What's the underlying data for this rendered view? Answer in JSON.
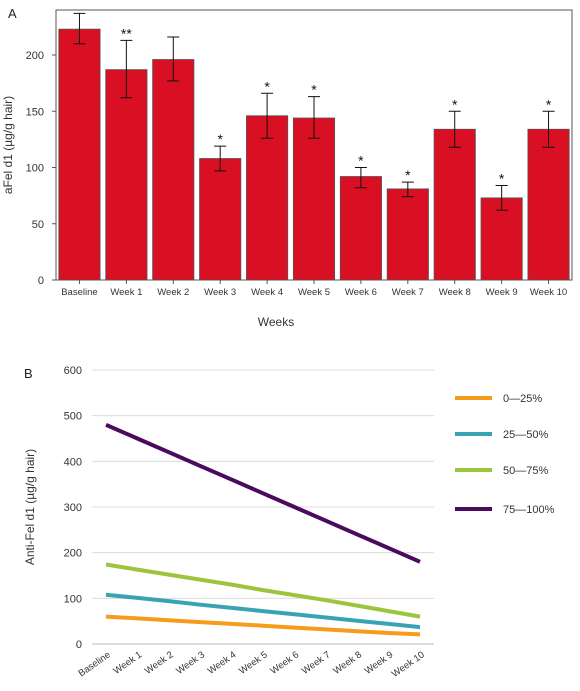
{
  "chart_data": [
    {
      "panel_label": "A",
      "type": "bar",
      "title": "",
      "xlabel": "Weeks",
      "ylabel": "aFel d1 (µg/g hair)",
      "ylim": [
        0,
        240
      ],
      "yticks": [
        0,
        50,
        100,
        150,
        200
      ],
      "grid": false,
      "categories": [
        "Baseline",
        "Week 1",
        "Week 2",
        "Week 3",
        "Week 4",
        "Week 5",
        "Week 6",
        "Week 7",
        "Week 8",
        "Week 9",
        "Week 10"
      ],
      "values": [
        223,
        187,
        196,
        108,
        146,
        144,
        92,
        81,
        134,
        73,
        134
      ],
      "error_low": [
        210,
        162,
        177,
        97,
        126,
        126,
        82,
        74,
        118,
        62,
        118
      ],
      "error_high": [
        237,
        213,
        216,
        119,
        166,
        163,
        100,
        87,
        150,
        84,
        150
      ],
      "significance": [
        "",
        "**",
        "",
        "*",
        "*",
        "*",
        "*",
        "*",
        "*",
        "*",
        "*"
      ],
      "bar_color": "#d90f23"
    },
    {
      "panel_label": "B",
      "type": "line",
      "title": "",
      "xlabel": "",
      "ylabel": "Anti-Fel d1 (µg/g hair)",
      "ylim": [
        0,
        600
      ],
      "yticks": [
        0,
        100,
        200,
        300,
        400,
        500,
        600
      ],
      "grid": true,
      "legend_position": "right",
      "x": [
        "Baseline",
        "Week 1",
        "Week 2",
        "Week 3",
        "Week 4",
        "Week 5",
        "Week 6",
        "Week 7",
        "Week 8",
        "Week 9",
        "Week 10"
      ],
      "series": [
        {
          "name": "0—25%",
          "color": "#f59c1a",
          "values": [
            60,
            56,
            52,
            48,
            44,
            40,
            36,
            32,
            28,
            24,
            21
          ]
        },
        {
          "name": "25—50%",
          "color": "#3aa3b3",
          "values": [
            108,
            101,
            94,
            86,
            79,
            72,
            65,
            58,
            51,
            44,
            37
          ]
        },
        {
          "name": "50—75%",
          "color": "#9bc53d",
          "values": [
            174,
            163,
            152,
            141,
            130,
            118,
            107,
            96,
            84,
            72,
            60
          ]
        },
        {
          "name": "75—100%",
          "color": "#4a0a5e",
          "values": [
            480,
            450,
            420,
            390,
            360,
            330,
            300,
            270,
            240,
            210,
            180
          ]
        }
      ]
    }
  ]
}
